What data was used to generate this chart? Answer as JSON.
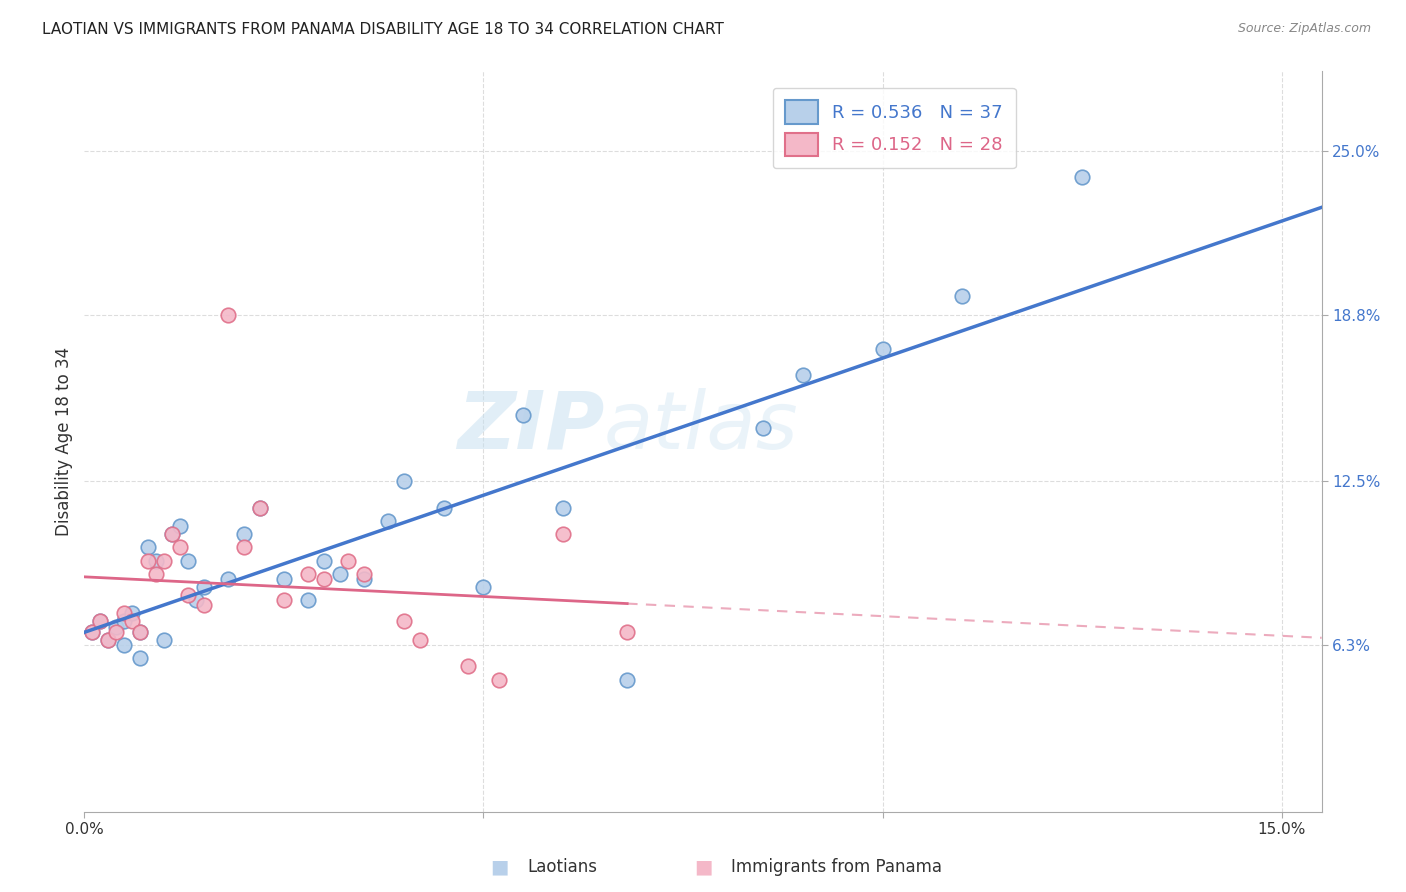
{
  "title": "LAOTIAN VS IMMIGRANTS FROM PANAMA DISABILITY AGE 18 TO 34 CORRELATION CHART",
  "source": "Source: ZipAtlas.com",
  "ylabel": "Disability Age 18 to 34",
  "xlim": [
    0.0,
    0.155
  ],
  "ylim": [
    0.0,
    0.28
  ],
  "yticks": [
    0.063,
    0.125,
    0.188,
    0.25
  ],
  "ytick_labels": [
    "6.3%",
    "12.5%",
    "18.8%",
    "25.0%"
  ],
  "xticks": [
    0.0,
    0.05,
    0.1,
    0.15
  ],
  "grid_color": "#dddddd",
  "bg_color": "#ffffff",
  "watermark_zip": "ZIP",
  "watermark_atlas": "atlas",
  "color_laotian_fill": "#b8d0ea",
  "color_laotian_edge": "#6699cc",
  "color_panama_fill": "#f4b8c8",
  "color_panama_edge": "#e0708a",
  "line_laotian": "#4477cc",
  "line_panama": "#dd6688",
  "legend_r1": "R = 0.536",
  "legend_n1": "N = 37",
  "legend_r2": "R = 0.152",
  "legend_n2": "N = 28",
  "laotian_x": [
    0.001,
    0.002,
    0.003,
    0.004,
    0.005,
    0.005,
    0.006,
    0.007,
    0.007,
    0.008,
    0.009,
    0.01,
    0.011,
    0.012,
    0.013,
    0.014,
    0.015,
    0.018,
    0.02,
    0.022,
    0.025,
    0.028,
    0.03,
    0.032,
    0.035,
    0.038,
    0.04,
    0.045,
    0.05,
    0.055,
    0.06,
    0.068,
    0.085,
    0.09,
    0.1,
    0.11,
    0.125
  ],
  "laotian_y": [
    0.068,
    0.072,
    0.065,
    0.07,
    0.072,
    0.063,
    0.075,
    0.068,
    0.058,
    0.1,
    0.095,
    0.065,
    0.105,
    0.108,
    0.095,
    0.08,
    0.085,
    0.088,
    0.105,
    0.115,
    0.088,
    0.08,
    0.095,
    0.09,
    0.088,
    0.11,
    0.125,
    0.115,
    0.085,
    0.15,
    0.115,
    0.05,
    0.145,
    0.165,
    0.175,
    0.195,
    0.24
  ],
  "panama_x": [
    0.001,
    0.002,
    0.003,
    0.004,
    0.005,
    0.006,
    0.007,
    0.008,
    0.009,
    0.01,
    0.011,
    0.012,
    0.013,
    0.015,
    0.018,
    0.02,
    0.022,
    0.025,
    0.028,
    0.03,
    0.033,
    0.035,
    0.04,
    0.042,
    0.048,
    0.052,
    0.06,
    0.068
  ],
  "panama_y": [
    0.068,
    0.072,
    0.065,
    0.068,
    0.075,
    0.072,
    0.068,
    0.095,
    0.09,
    0.095,
    0.105,
    0.1,
    0.082,
    0.078,
    0.188,
    0.1,
    0.115,
    0.08,
    0.09,
    0.088,
    0.095,
    0.09,
    0.072,
    0.065,
    0.055,
    0.05,
    0.105,
    0.068
  ]
}
